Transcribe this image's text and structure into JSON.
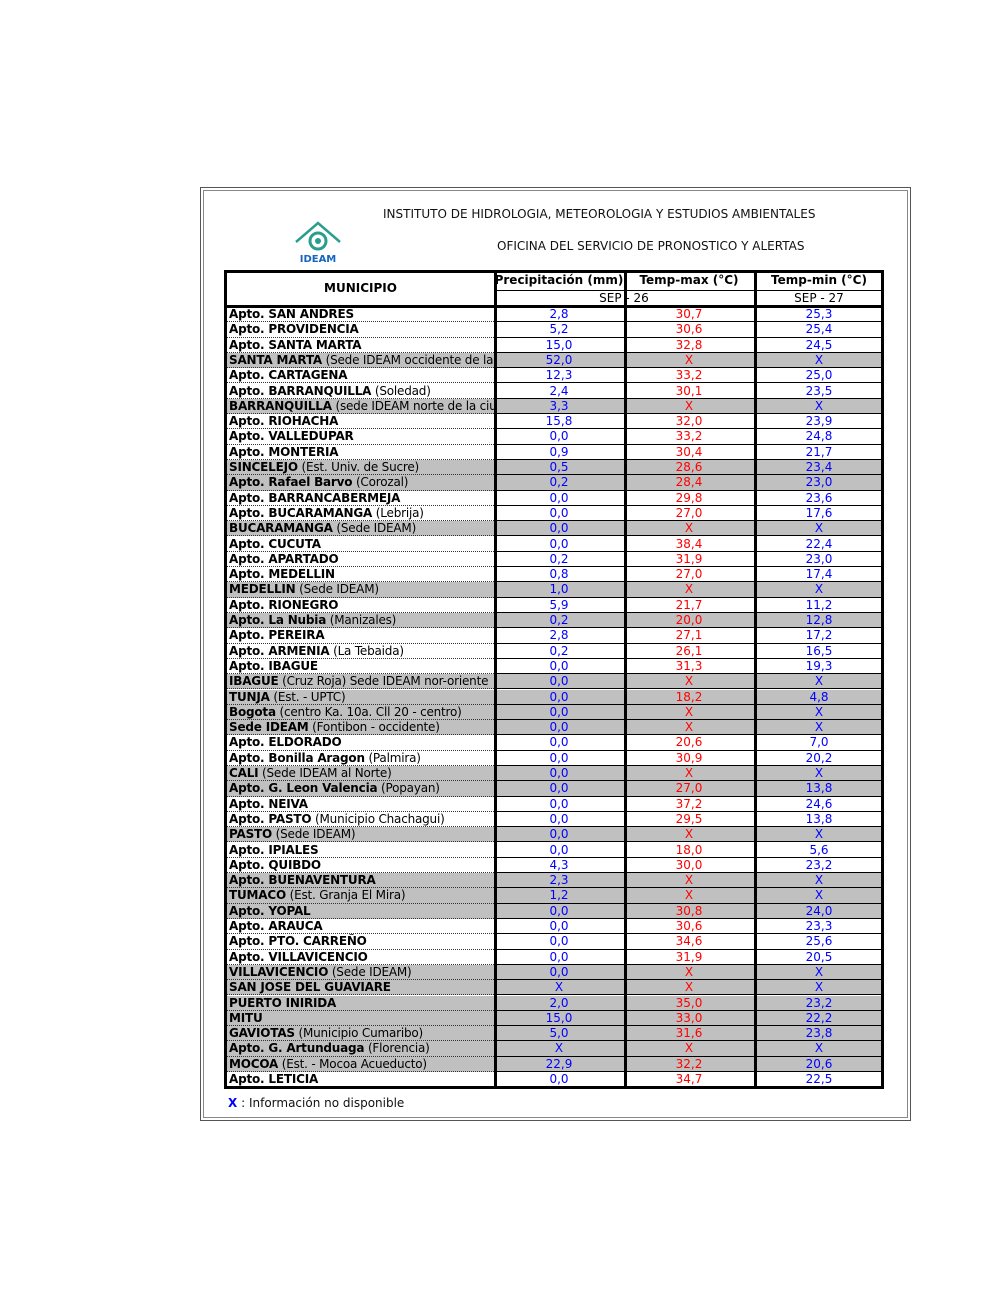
{
  "header": {
    "institute": "INSTITUTO DE HIDROLOGIA, METEOROLOGIA Y ESTUDIOS AMBIENTALES",
    "office": "OFICINA DEL SERVICIO DE PRONOSTICO Y ALERTAS",
    "logo_text": "IDEAM"
  },
  "table": {
    "columns": {
      "municipio": "MUNICIPIO",
      "precipitation": "Precipitación (mm)",
      "temp_max": "Temp-max (°C)",
      "temp_min": "Temp-min (°C)"
    },
    "dates": {
      "first": "SEP - 26",
      "second": "SEP - 27"
    },
    "rows": [
      {
        "name": "Apto. SAN ANDRES",
        "precipitation": "2,8",
        "temp_max": "30,7",
        "temp_min": "25,3",
        "shaded": false
      },
      {
        "name": "Apto. PROVIDENCIA",
        "precipitation": "5,2",
        "temp_max": "30,6",
        "temp_min": "25,4",
        "shaded": false
      },
      {
        "name": "Apto. SANTA MARTA",
        "precipitation": "15,0",
        "temp_max": "32,8",
        "temp_min": "24,5",
        "shaded": false
      },
      {
        "name": "SANTA MARTA",
        "detail": "(Sede IDEAM occidente de la c",
        "precipitation": "52,0",
        "temp_max": "X",
        "temp_min": "X",
        "shaded": true
      },
      {
        "name": "Apto. CARTAGENA",
        "precipitation": "12,3",
        "temp_max": "33,2",
        "temp_min": "25,0",
        "shaded": false
      },
      {
        "name": "Apto. BARRANQUILLA",
        "detail": "(Soledad)",
        "precipitation": "2,4",
        "temp_max": "30,1",
        "temp_min": "23,5",
        "shaded": false
      },
      {
        "name": "BARRANQUILLA",
        "detail": "(sede IDEAM norte de la ciud",
        "precipitation": "3,3",
        "temp_max": "X",
        "temp_min": "X",
        "shaded": true
      },
      {
        "name": "Apto. RIOHACHA",
        "precipitation": "15,8",
        "temp_max": "32,0",
        "temp_min": "23,9",
        "shaded": false
      },
      {
        "name": "Apto. VALLEDUPAR",
        "precipitation": "0,0",
        "temp_max": "33,2",
        "temp_min": "24,8",
        "shaded": false
      },
      {
        "name": "Apto. MONTERIA",
        "precipitation": "0,9",
        "temp_max": "30,4",
        "temp_min": "21,7",
        "shaded": false
      },
      {
        "name": "SINCELEJO",
        "detail": "(Est. Univ. de Sucre)",
        "precipitation": "0,5",
        "temp_max": "28,6",
        "temp_min": "23,4",
        "shaded": true
      },
      {
        "name": "Apto. Rafael Barvo",
        "detail": "(Corozal)",
        "precipitation": "0,2",
        "temp_max": "28,4",
        "temp_min": "23,0",
        "shaded": true
      },
      {
        "name": "Apto. BARRANCABERMEJA",
        "precipitation": "0,0",
        "temp_max": "29,8",
        "temp_min": "23,6",
        "shaded": false
      },
      {
        "name": "Apto. BUCARAMANGA",
        "detail": "(Lebrija)",
        "precipitation": "0,0",
        "temp_max": "27,0",
        "temp_min": "17,6",
        "shaded": false
      },
      {
        "name": "BUCARAMANGA",
        "detail": "(Sede IDEAM)",
        "precipitation": "0,0",
        "temp_max": "X",
        "temp_min": "X",
        "shaded": true
      },
      {
        "name": "Apto. CUCUTA",
        "precipitation": "0,0",
        "temp_max": "38,4",
        "temp_min": "22,4",
        "shaded": false
      },
      {
        "name": "Apto. APARTADO",
        "precipitation": "0,2",
        "temp_max": "31,9",
        "temp_min": "23,0",
        "shaded": false
      },
      {
        "name": "Apto. MEDELLIN",
        "precipitation": "0,8",
        "temp_max": "27,0",
        "temp_min": "17,4",
        "shaded": false
      },
      {
        "name": "MEDELLIN",
        "detail": "(Sede IDEAM)",
        "precipitation": "1,0",
        "temp_max": "X",
        "temp_min": "X",
        "shaded": true
      },
      {
        "name": "Apto. RIONEGRO",
        "precipitation": "5,9",
        "temp_max": "21,7",
        "temp_min": "11,2",
        "shaded": false
      },
      {
        "name": "Apto. La Nubia",
        "detail": "(Manizales)",
        "precipitation": "0,2",
        "temp_max": "20,0",
        "temp_min": "12,8",
        "shaded": true
      },
      {
        "name": "Apto. PEREIRA",
        "precipitation": "2,8",
        "temp_max": "27,1",
        "temp_min": "17,2",
        "shaded": false
      },
      {
        "name": "Apto. ARMENIA",
        "detail": "(La Tebaida)",
        "precipitation": "0,2",
        "temp_max": "26,1",
        "temp_min": "16,5",
        "shaded": false
      },
      {
        "name": "Apto. IBAGUE",
        "precipitation": "0,0",
        "temp_max": "31,3",
        "temp_min": "19,3",
        "shaded": false
      },
      {
        "name": "IBAGUE",
        "detail": "(Cruz Roja) Sede IDEAM  nor-oriente",
        "precipitation": "0,0",
        "temp_max": "X",
        "temp_min": "X",
        "shaded": true
      },
      {
        "name": "TUNJA",
        "detail": "(Est. - UPTC)",
        "precipitation": "0,0",
        "temp_max": "18,2",
        "temp_min": "4,8",
        "shaded": true
      },
      {
        "name": "Bogota",
        "detail": "(centro Ka. 10a. Cll 20 - centro)",
        "precipitation": "0,0",
        "temp_max": "X",
        "temp_min": "X",
        "shaded": true
      },
      {
        "name": "Sede IDEAM",
        "detail": "(Fontibon - occidente)",
        "precipitation": "0,0",
        "temp_max": "X",
        "temp_min": "X",
        "shaded": true
      },
      {
        "name": "Apto. ELDORADO",
        "precipitation": "0,0",
        "temp_max": "20,6",
        "temp_min": "7,0",
        "shaded": false
      },
      {
        "name": "Apto. Bonilla Aragon",
        "detail": "(Palmira)",
        "precipitation": "0,0",
        "temp_max": "30,9",
        "temp_min": "20,2",
        "shaded": false
      },
      {
        "name": "CALI",
        "detail": "(Sede IDEAM al Norte)",
        "precipitation": "0,0",
        "temp_max": "X",
        "temp_min": "X",
        "shaded": true
      },
      {
        "name": "Apto. G. Leon Valencia",
        "detail": "(Popayan)",
        "precipitation": "0,0",
        "temp_max": "27,0",
        "temp_min": "13,8",
        "shaded": true
      },
      {
        "name": "Apto. NEIVA",
        "precipitation": "0,0",
        "temp_max": "37,2",
        "temp_min": "24,6",
        "shaded": false
      },
      {
        "name": "Apto. PASTO",
        "detail": "(Municipio Chachagui)",
        "precipitation": "0,0",
        "temp_max": "29,5",
        "temp_min": "13,8",
        "shaded": false
      },
      {
        "name": "PASTO",
        "detail": "(Sede IDEAM)",
        "precipitation": "0,0",
        "temp_max": "X",
        "temp_min": "X",
        "shaded": true
      },
      {
        "name": "Apto. IPIALES",
        "precipitation": "0,0",
        "temp_max": "18,0",
        "temp_min": "5,6",
        "shaded": false
      },
      {
        "name": "Apto. QUIBDO",
        "precipitation": "4,3",
        "temp_max": "30,0",
        "temp_min": "23,2",
        "shaded": false
      },
      {
        "name": "Apto. BUENAVENTURA",
        "precipitation": "2,3",
        "temp_max": "X",
        "temp_min": "X",
        "shaded": true
      },
      {
        "name": "TUMACO",
        "detail": "(Est. Granja El Mira)",
        "precipitation": "1,2",
        "temp_max": "X",
        "temp_min": "X",
        "shaded": true
      },
      {
        "name": "Apto. YOPAL",
        "precipitation": "0,0",
        "temp_max": "30,8",
        "temp_min": "24,0",
        "shaded": true
      },
      {
        "name": "Apto. ARAUCA",
        "precipitation": "0,0",
        "temp_max": "30,6",
        "temp_min": "23,3",
        "shaded": false
      },
      {
        "name": "Apto. PTO.  CARREÑO",
        "precipitation": "0,0",
        "temp_max": "34,6",
        "temp_min": "25,6",
        "shaded": false
      },
      {
        "name": "Apto. VILLAVICENCIO",
        "precipitation": "0,0",
        "temp_max": "31,9",
        "temp_min": "20,5",
        "shaded": false
      },
      {
        "name": "VILLAVICENCIO",
        "detail": "(Sede IDEAM)",
        "precipitation": "0,0",
        "temp_max": "X",
        "temp_min": "X",
        "shaded": true
      },
      {
        "name": "SAN JOSE DEL GUAVIARE",
        "precipitation": "X",
        "temp_max": "X",
        "temp_min": "X",
        "shaded": true
      },
      {
        "name": "PUERTO INIRIDA",
        "precipitation": "2,0",
        "temp_max": "35,0",
        "temp_min": "23,2",
        "shaded": true
      },
      {
        "name": "MITU",
        "precipitation": "15,0",
        "temp_max": "33,0",
        "temp_min": "22,2",
        "shaded": true
      },
      {
        "name": "GAVIOTAS",
        "detail": "(Municipio Cumaribo)",
        "precipitation": "5,0",
        "temp_max": "31,6",
        "temp_min": "23,8",
        "shaded": true
      },
      {
        "name": "Apto. G. Artunduaga",
        "detail": "(Florencia)",
        "precipitation": "X",
        "temp_max": "X",
        "temp_min": "X",
        "shaded": true
      },
      {
        "name": "MOCOA",
        "detail": "(Est. - Mocoa Acueducto)",
        "precipitation": "22,9",
        "temp_max": "32,2",
        "temp_min": "20,6",
        "shaded": true
      },
      {
        "name": "Apto. LETICIA",
        "precipitation": "0,0",
        "temp_max": "34,7",
        "temp_min": "22,5",
        "shaded": false
      }
    ]
  },
  "footnote": {
    "symbol": "X",
    "text": ": Información no disponible"
  }
}
